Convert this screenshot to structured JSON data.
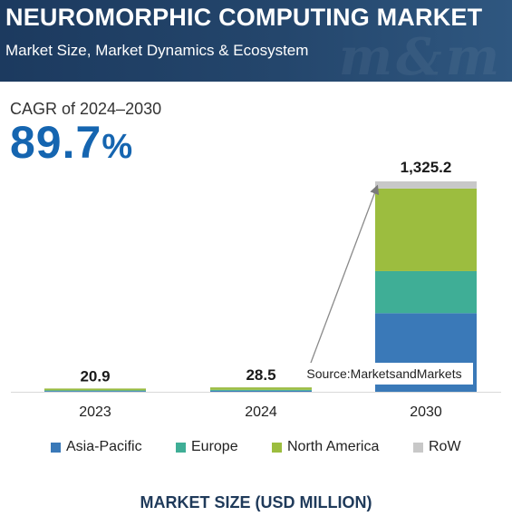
{
  "header": {
    "title": "NEUROMORPHIC COMPUTING MARKET",
    "subtitle": "Market Size, Market Dynamics & Ecosystem"
  },
  "cagr": {
    "label": "CAGR of 2024–2030",
    "value": "89.7",
    "unit": "%"
  },
  "source": "Source:MarketsandMarkets",
  "footer_label": "MARKET SIZE (USD MILLION)",
  "colors": {
    "asia_pacific": "#3a79b8",
    "europe": "#3fae96",
    "north_america": "#9cbd3f",
    "row": "#c8c8c8",
    "header_bg": "#1c3a5f",
    "accent": "#1565b0"
  },
  "chart_data": {
    "type": "bar",
    "stacked": true,
    "categories": [
      "2023",
      "2024",
      "2030"
    ],
    "totals": [
      "20.9",
      "28.5",
      "1,325.2"
    ],
    "series": [
      {
        "name": "Asia-Pacific",
        "color": "#3a79b8",
        "values": [
          4.8,
          6.6,
          495.0
        ]
      },
      {
        "name": "Europe",
        "color": "#3fae96",
        "values": [
          4.2,
          5.8,
          265.0
        ]
      },
      {
        "name": "North America",
        "color": "#9cbd3f",
        "values": [
          11.3,
          15.3,
          520.0
        ]
      },
      {
        "name": "RoW",
        "color": "#c8c8c8",
        "values": [
          0.6,
          0.8,
          45.2
        ]
      }
    ],
    "ylim": [
      0,
      1325.2
    ],
    "grid": false,
    "legend_position": "bottom"
  }
}
